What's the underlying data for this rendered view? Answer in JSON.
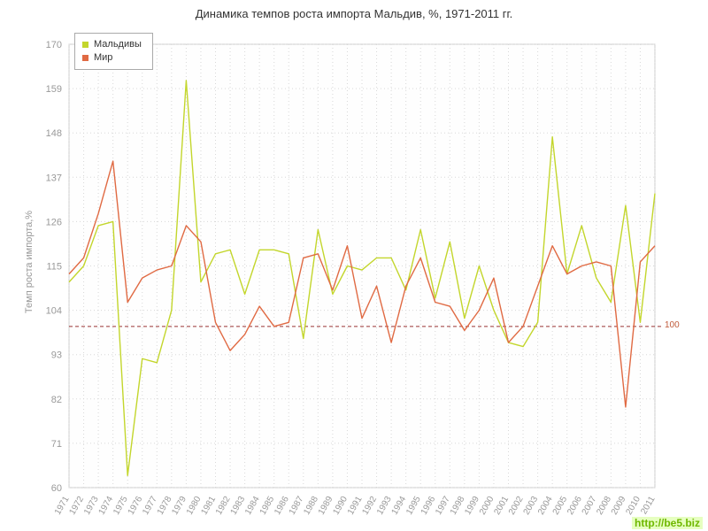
{
  "watermark": {
    "text": "http://be5.biz"
  },
  "chart_data": {
    "type": "line",
    "title": "Динамика темпов роста импорта Мальдив, %, 1971-2011 гг.",
    "ylabel": "Темп роста импорта,%",
    "xlabel": "",
    "ylim": [
      60,
      170
    ],
    "yticks": [
      60,
      71,
      82,
      93,
      104,
      115,
      126,
      137,
      148,
      159,
      170
    ],
    "grid": true,
    "legend_position": "top-left",
    "years": [
      1971,
      1972,
      1973,
      1974,
      1975,
      1976,
      1977,
      1978,
      1979,
      1980,
      1981,
      1982,
      1983,
      1984,
      1985,
      1986,
      1987,
      1988,
      1989,
      1990,
      1991,
      1992,
      1993,
      1994,
      1995,
      1996,
      1997,
      1998,
      1999,
      2000,
      2001,
      2002,
      2003,
      2004,
      2005,
      2006,
      2007,
      2008,
      2009,
      2010,
      2011
    ],
    "series": [
      {
        "name": "Мальдивы",
        "color": "#c3d62c",
        "values": [
          111,
          115,
          125,
          126,
          63,
          92,
          91,
          104,
          161,
          111,
          118,
          119,
          108,
          119,
          119,
          118,
          97,
          124,
          108,
          115,
          114,
          117,
          117,
          109,
          124,
          107,
          121,
          102,
          115,
          104,
          96,
          95,
          101,
          147,
          113,
          125,
          112,
          106,
          130,
          101,
          133
        ]
      },
      {
        "name": "Мир",
        "color": "#e06a43",
        "values": [
          113,
          117,
          128,
          141,
          106,
          112,
          114,
          115,
          125,
          121,
          101,
          94,
          98,
          105,
          100,
          101,
          117,
          118,
          109,
          120,
          102,
          110,
          96,
          110,
          117,
          106,
          105,
          99,
          104,
          112,
          96,
          100,
          110,
          120,
          113,
          115,
          116,
          115,
          80,
          116,
          120
        ]
      }
    ],
    "refline": {
      "value": 100,
      "label": "100",
      "color": "#993333"
    },
    "axis_colors": {
      "tick_label": "#999999",
      "grid": "#d8d8d8",
      "border": "#cccccc"
    }
  }
}
